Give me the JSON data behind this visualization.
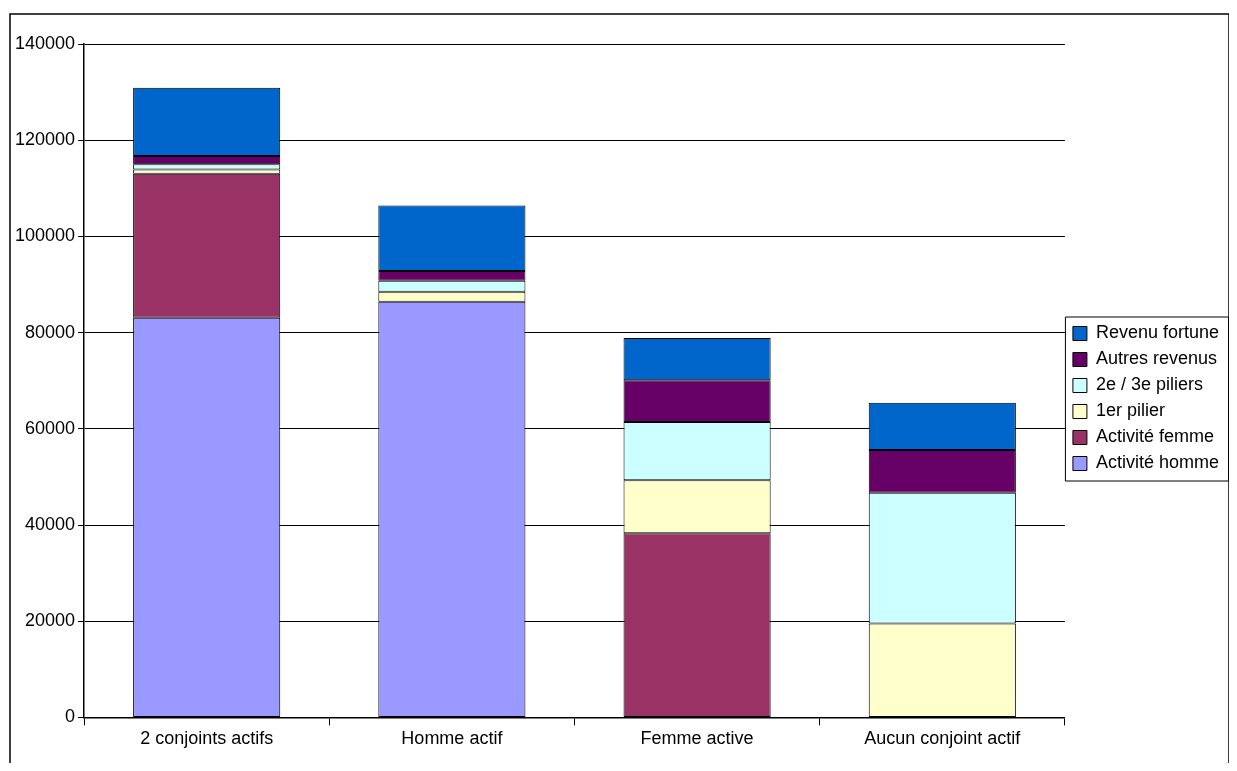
{
  "chart_data": {
    "type": "bar",
    "stacked": true,
    "categories": [
      "2 conjoints actifs",
      "Homme actif",
      "Femme active",
      "Aucun conjoint actif"
    ],
    "series": [
      {
        "name": "Activité homme",
        "color": "#9999ff",
        "values": [
          83100,
          86400,
          null,
          null
        ]
      },
      {
        "name": "Activité femme",
        "color": "#993366",
        "values": [
          29900,
          null,
          38300,
          null
        ]
      },
      {
        "name": "1er pilier",
        "color": "#ffffcc",
        "values": [
          900,
          2100,
          11000,
          19500
        ]
      },
      {
        "name": "2e / 3e piliers",
        "color": "#ccffff",
        "values": [
          1100,
          2300,
          12100,
          27200
        ]
      },
      {
        "name": "Autres revenus",
        "color": "#660066",
        "values": [
          1700,
          2000,
          8700,
          8900
        ]
      },
      {
        "name": "Revenu fortune",
        "color": "#0066cc",
        "values": [
          14200,
          13600,
          8800,
          9800
        ]
      }
    ],
    "ylim": [
      0,
      140000
    ],
    "yticks": [
      0,
      20000,
      40000,
      60000,
      80000,
      100000,
      120000,
      140000
    ],
    "grid": "y",
    "legend": "right"
  }
}
